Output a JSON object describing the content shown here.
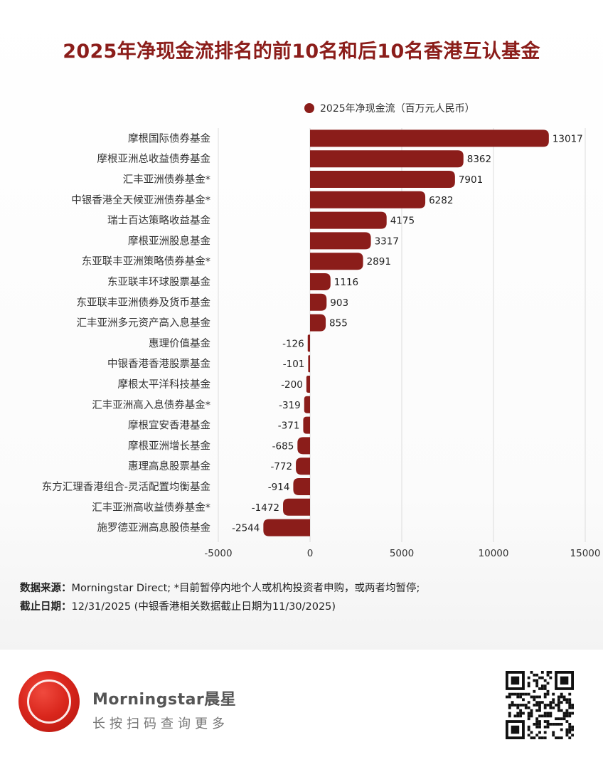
{
  "title": "2025年净现金流排名的前10名和后10名香港互认基金",
  "chart_data": {
    "type": "bar",
    "orientation": "horizontal",
    "title": "2025年净现金流排名的前10名和后10名香港互认基金",
    "legend": "2025年净现金流（百万元人民币）",
    "legend_position": "top",
    "categories": [
      "摩根国际债券基金",
      "摩根亚洲总收益债券基金",
      "汇丰亚洲债券基金*",
      "中银香港全天候亚洲债券基金*",
      "瑞士百达策略收益基金",
      "摩根亚洲股息基金",
      "东亚联丰亚洲策略债券基金*",
      "东亚联丰环球股票基金",
      "东亚联丰亚洲债券及货币基金",
      "汇丰亚洲多元资产高入息基金",
      "惠理价值基金",
      "中银香港香港股票基金",
      "摩根太平洋科技基金",
      "汇丰亚洲高入息债券基金*",
      "摩根宜安香港基金",
      "摩根亚洲增长基金",
      "惠理高息股票基金",
      "东方汇理香港组合-灵活配置均衡基金",
      "汇丰亚洲高收益债券基金*",
      "施罗德亚洲高息股债基金"
    ],
    "values": [
      13017,
      8362,
      7901,
      6282,
      4175,
      3317,
      2891,
      1116,
      903,
      855,
      -126,
      -101,
      -200,
      -319,
      -371,
      -685,
      -772,
      -914,
      -1472,
      -2544
    ],
    "xlim": [
      -5000,
      15000
    ],
    "xticks": [
      -5000,
      0,
      5000,
      10000,
      15000
    ],
    "grid": true,
    "xlabel": "",
    "ylabel": ""
  },
  "colors": {
    "bar": "#8b1d1a",
    "title": "#8b1d1a",
    "grid": "#dcdcdc"
  },
  "notes": {
    "source_label": "数据来源：",
    "source_text": "Morningstar Direct; *目前暂停内地个人或机构投资者申购，或两者均暂停;",
    "date_label": "截止日期：",
    "date_text": "12/31/2025 (中银香港相关数据截止日期为11/30/2025)"
  },
  "footer": {
    "brand": "Morningstar晨星",
    "tagline": "长按扫码查询更多",
    "logo_icon": "morningstar-logo-icon",
    "qr_icon": "qr-code-icon"
  }
}
